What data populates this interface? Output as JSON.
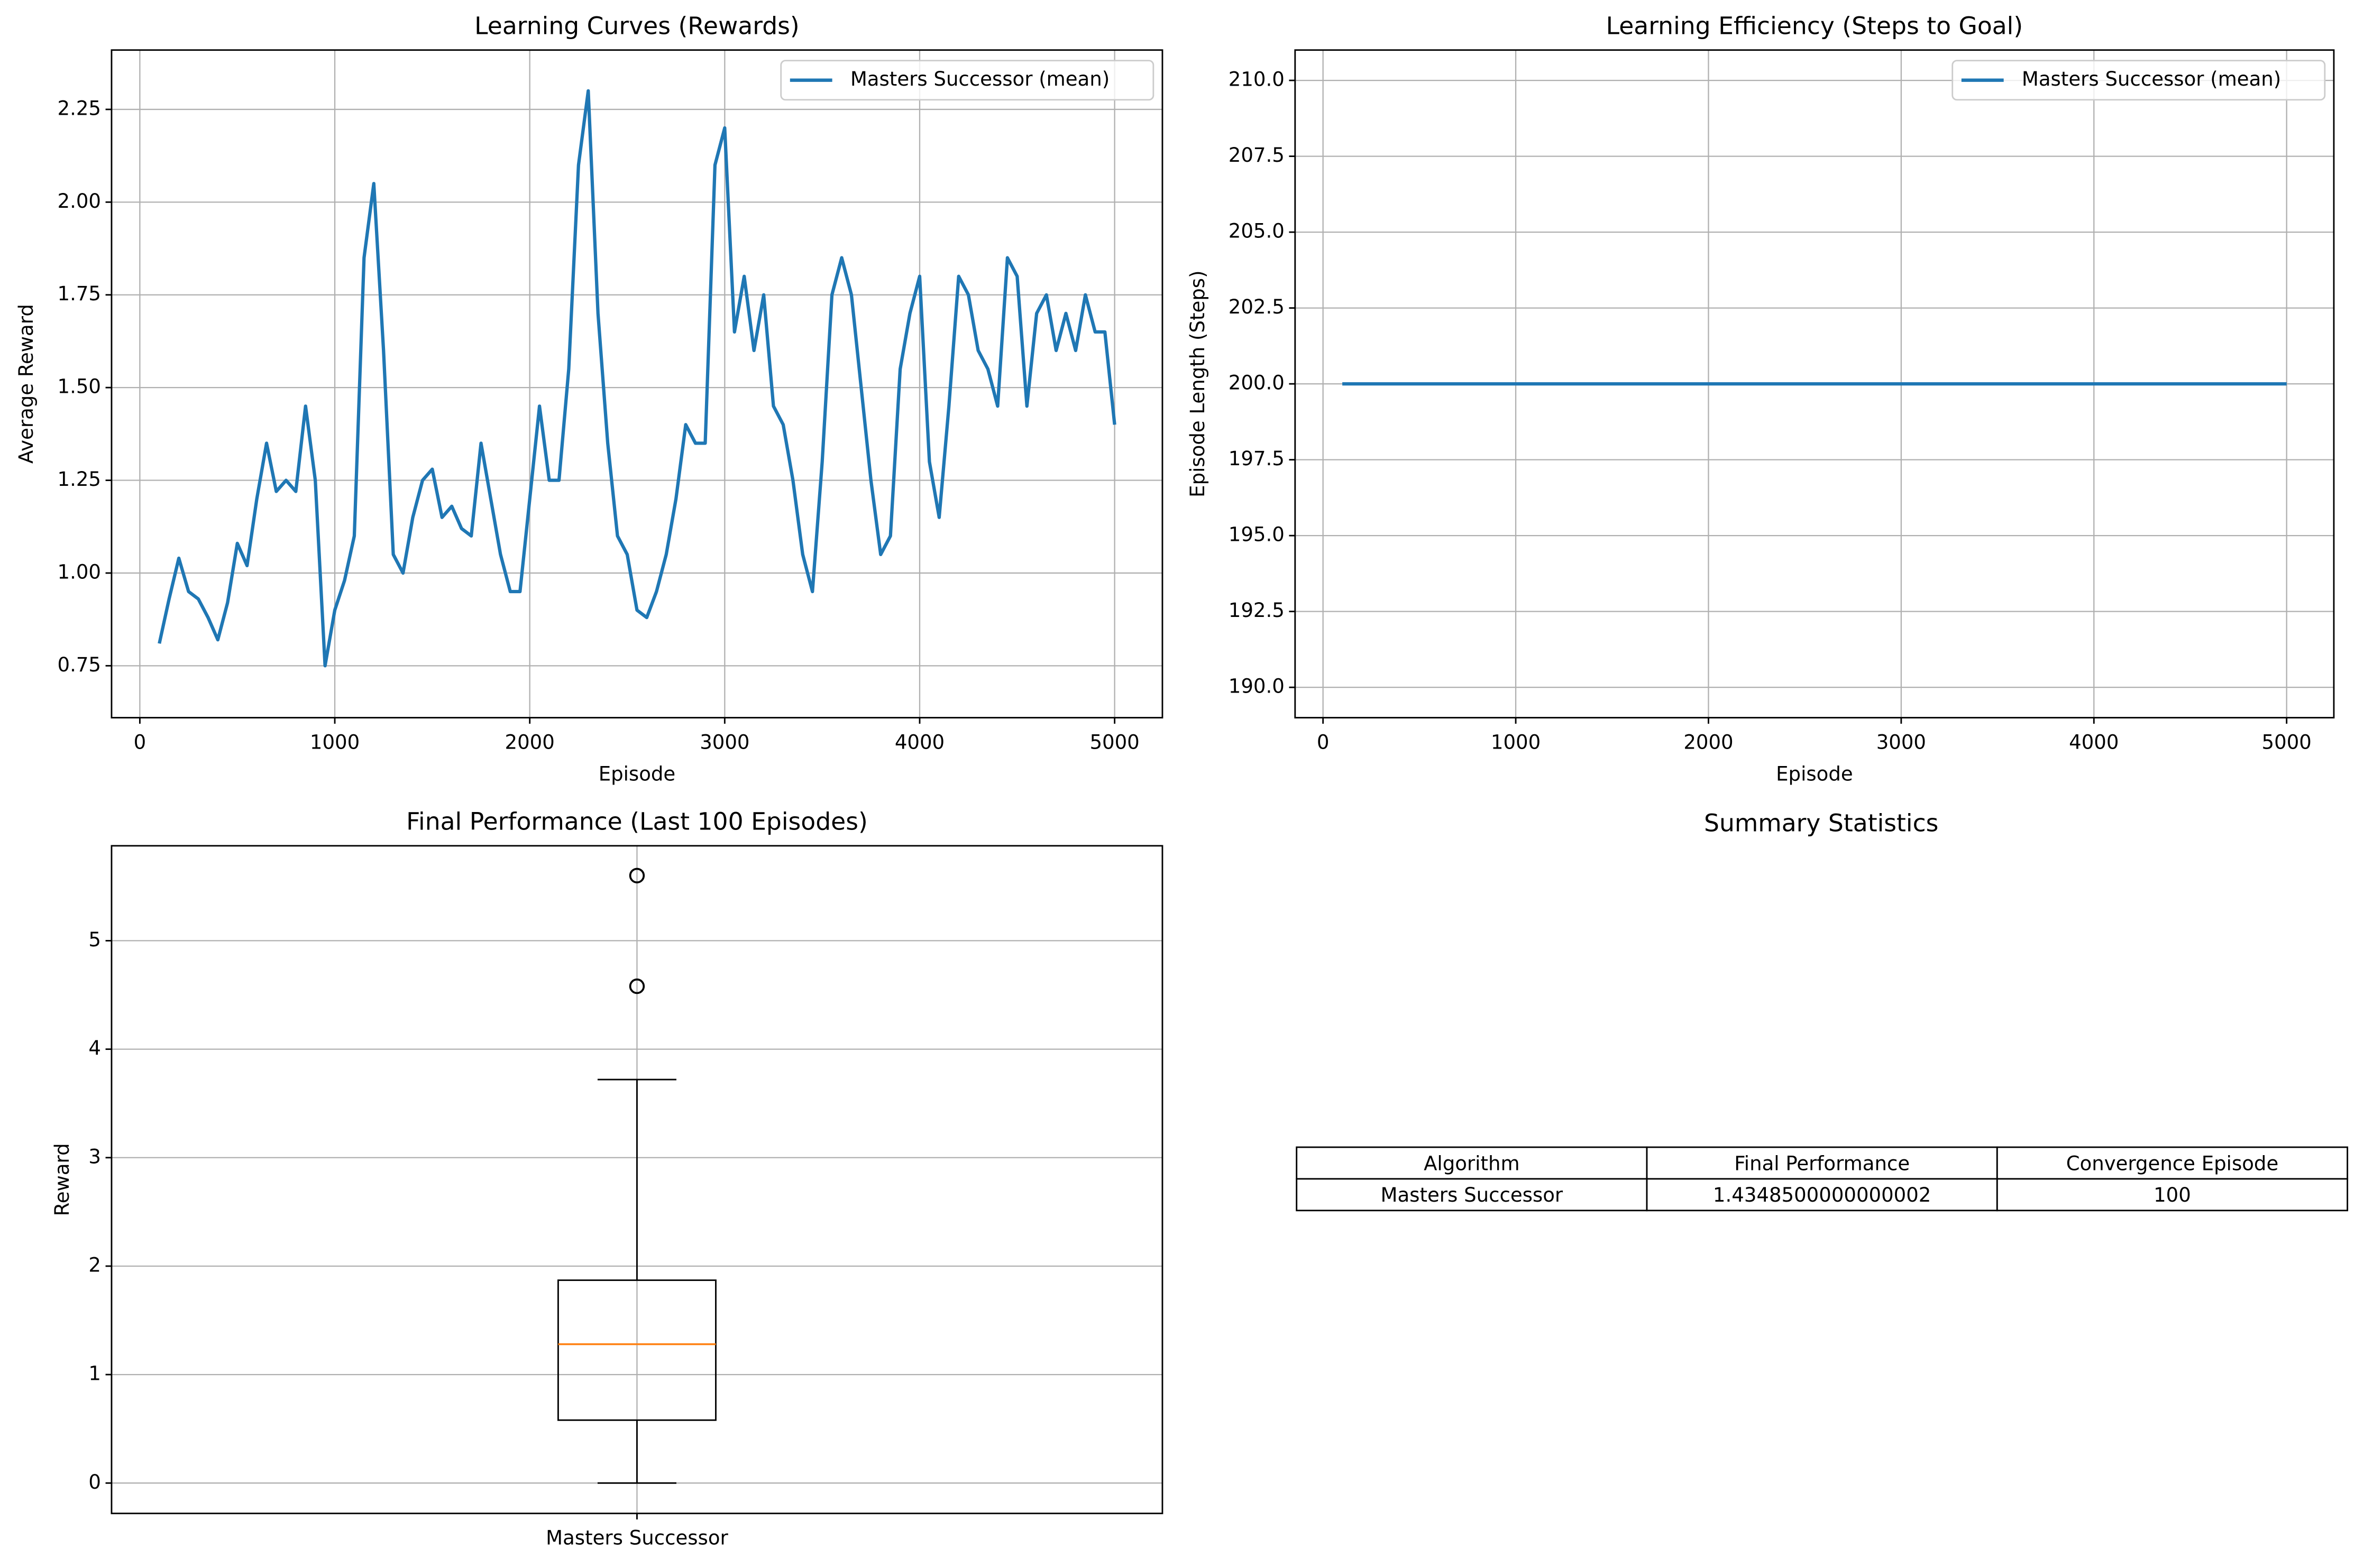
{
  "chart_data": [
    {
      "type": "line",
      "title": "Learning Curves (Rewards)",
      "xlabel": "Episode",
      "ylabel": "Average Reward",
      "x": [
        100,
        150,
        200,
        250,
        300,
        350,
        400,
        450,
        500,
        550,
        600,
        650,
        700,
        750,
        800,
        850,
        900,
        950,
        1000,
        1050,
        1100,
        1150,
        1200,
        1250,
        1300,
        1350,
        1400,
        1450,
        1500,
        1550,
        1600,
        1650,
        1700,
        1750,
        1800,
        1850,
        1900,
        1950,
        2000,
        2050,
        2100,
        2150,
        2200,
        2250,
        2300,
        2350,
        2400,
        2450,
        2500,
        2550,
        2600,
        2650,
        2700,
        2750,
        2800,
        2850,
        2900,
        2950,
        3000,
        3050,
        3100,
        3150,
        3200,
        3250,
        3300,
        3350,
        3400,
        3450,
        3500,
        3550,
        3600,
        3650,
        3700,
        3750,
        3800,
        3850,
        3900,
        3950,
        4000,
        4050,
        4100,
        4150,
        4200,
        4250,
        4300,
        4350,
        4400,
        4450,
        4500,
        4550,
        4600,
        4650,
        4700,
        4750,
        4800,
        4850,
        4900,
        4950,
        5000
      ],
      "series": [
        {
          "name": "Masters Successor (mean)",
          "color": "#1f77b4",
          "values": [
            0.81,
            0.93,
            1.04,
            0.95,
            0.93,
            0.88,
            0.82,
            0.92,
            1.08,
            1.02,
            1.2,
            1.35,
            1.22,
            1.25,
            1.22,
            1.45,
            1.25,
            0.75,
            0.9,
            0.98,
            1.1,
            1.85,
            2.05,
            1.6,
            1.05,
            1.0,
            1.15,
            1.25,
            1.28,
            1.15,
            1.18,
            1.12,
            1.1,
            1.35,
            1.2,
            1.05,
            0.95,
            0.95,
            1.2,
            1.45,
            1.25,
            1.25,
            1.55,
            2.1,
            2.3,
            1.7,
            1.35,
            1.1,
            1.05,
            0.9,
            0.88,
            0.95,
            1.05,
            1.2,
            1.4,
            1.35,
            1.35,
            2.1,
            2.2,
            1.65,
            1.8,
            1.6,
            1.75,
            1.45,
            1.4,
            1.25,
            1.05,
            0.95,
            1.3,
            1.75,
            1.85,
            1.75,
            1.5,
            1.25,
            1.05,
            1.1,
            1.55,
            1.7,
            1.8,
            1.3,
            1.15,
            1.45,
            1.8,
            1.75,
            1.6,
            1.55,
            1.45,
            1.85,
            1.8,
            1.45,
            1.7,
            1.75,
            1.6,
            1.7,
            1.6,
            1.75,
            1.65,
            1.65,
            1.4
          ]
        }
      ],
      "xlim": [
        -145,
        5245
      ],
      "ylim": [
        0.61,
        2.41
      ],
      "xticks": [
        0,
        1000,
        2000,
        3000,
        4000,
        5000
      ],
      "yticks": [
        0.75,
        {
          "value": 1,
          "label": "1.00"
        },
        1.25,
        {
          "value": 1.5,
          "label": "1.50"
        },
        1.75,
        {
          "value": 2,
          "label": "2.00"
        },
        2.25
      ],
      "grid": true,
      "legend": "upper right"
    },
    {
      "type": "line",
      "title": "Learning Efficiency (Steps to Goal)",
      "xlabel": "Episode",
      "ylabel": "Episode Length (Steps)",
      "x": [
        100,
        5000
      ],
      "series": [
        {
          "name": "Masters Successor (mean)",
          "color": "#1f77b4",
          "values": [
            200,
            200
          ]
        }
      ],
      "xlim": [
        -145,
        5245
      ],
      "ylim": [
        189,
        211
      ],
      "xticks": [
        0,
        1000,
        2000,
        3000,
        4000,
        5000
      ],
      "yticks": [
        {
          "value": 190,
          "label": "190.0"
        },
        192.5,
        {
          "value": 195,
          "label": "195.0"
        },
        197.5,
        {
          "value": 200,
          "label": "200.0"
        },
        202.5,
        {
          "value": 205,
          "label": "205.0"
        },
        207.5,
        {
          "value": 210,
          "label": "210.0"
        }
      ],
      "grid": true,
      "legend": "upper right"
    },
    {
      "type": "box",
      "title": "Final Performance (Last 100 Episodes)",
      "ylabel": "Reward",
      "categories": [
        "Masters Successor"
      ],
      "color": "#000000",
      "median_color": "#ff7f0e",
      "boxes": [
        {
          "whislo": 0,
          "q1": 0.58,
          "med": 1.28,
          "q3": 1.87,
          "whishi": 3.72,
          "fliers": [
            4.58,
            5.6
          ]
        }
      ],
      "ylim": [
        -0.28,
        5.875
      ],
      "yticks": [
        0,
        1,
        2,
        3,
        4,
        5
      ],
      "grid": true
    }
  ],
  "table": {
    "title": "Summary Statistics",
    "columns": [
      "Algorithm",
      "Final Performance",
      "Convergence Episode"
    ],
    "rows": [
      [
        "Masters Successor",
        "1.4348500000000002",
        "100"
      ]
    ]
  }
}
